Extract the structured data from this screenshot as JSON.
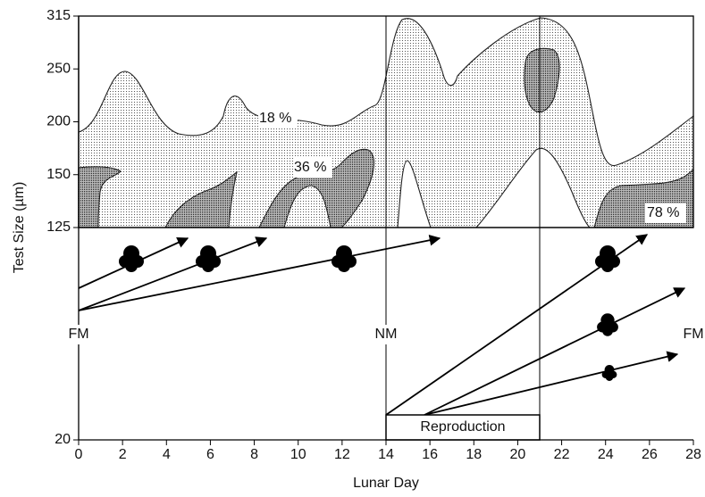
{
  "chart_data": {
    "type": "contour",
    "xlabel": "Lunar Day",
    "ylabel": "Test Size (µm)",
    "xlim": [
      0,
      28
    ],
    "xticks": [
      0,
      2,
      4,
      6,
      8,
      10,
      12,
      14,
      16,
      18,
      20,
      22,
      24,
      26,
      28
    ],
    "yticks": [
      315,
      250,
      200,
      150,
      125,
      20
    ],
    "phase_lines": [
      14,
      21
    ],
    "contour_labels": [
      "18 %",
      "36 %",
      "78 %"
    ],
    "phase_labels": [
      "FM",
      "NM",
      "FM"
    ],
    "annotation": "Reproduction"
  }
}
